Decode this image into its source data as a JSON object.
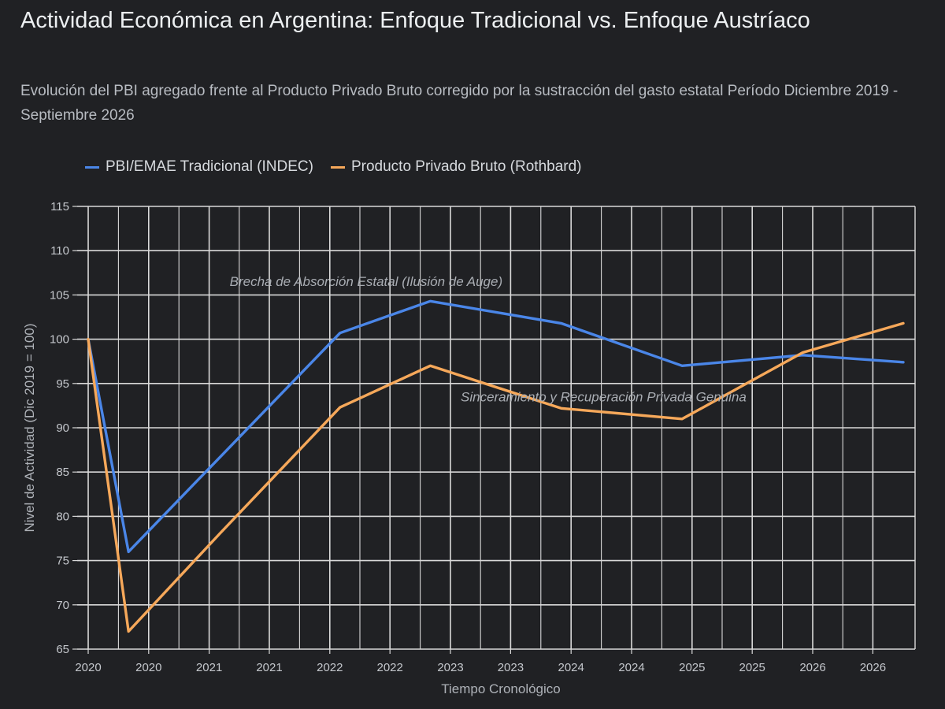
{
  "title": "Actividad Económica en Argentina: Enfoque Tradicional vs. Enfoque Austríaco",
  "subtitle": "Evolución del PBI agregado frente al Producto Privado Bruto corregido por la sustracción del gasto estatal Período Diciembre 2019 - Septiembre 2026",
  "colors": {
    "background": "#202124",
    "grid": "#d9d9d9",
    "series_traditional": "#4a86e8",
    "series_rothbard": "#f6a85a"
  },
  "chart_data": {
    "type": "line",
    "xlabel": "Tiempo Cronológico",
    "ylabel": "Nivel de Actividad (Dic 2019 = 100)",
    "ylim": [
      65,
      115
    ],
    "yticks": [
      65,
      70,
      75,
      80,
      85,
      90,
      95,
      100,
      105,
      110,
      115
    ],
    "xlim": [
      "2019-12-01",
      "2026-09-01"
    ],
    "xticks": [
      {
        "date": "2019-12-01",
        "label": "2020"
      },
      {
        "date": "2020-06-01",
        "label": "2020"
      },
      {
        "date": "2020-12-01",
        "label": "2021"
      },
      {
        "date": "2021-06-01",
        "label": "2021"
      },
      {
        "date": "2021-12-01",
        "label": "2022"
      },
      {
        "date": "2022-06-01",
        "label": "2022"
      },
      {
        "date": "2022-12-01",
        "label": "2023"
      },
      {
        "date": "2023-06-01",
        "label": "2023"
      },
      {
        "date": "2023-12-01",
        "label": "2024"
      },
      {
        "date": "2024-06-01",
        "label": "2024"
      },
      {
        "date": "2024-12-01",
        "label": "2025"
      },
      {
        "date": "2025-06-01",
        "label": "2025"
      },
      {
        "date": "2025-12-01",
        "label": "2026"
      },
      {
        "date": "2026-06-01",
        "label": "2026"
      }
    ],
    "grid": true,
    "legend_position": "top-left",
    "series": [
      {
        "name": "PBI/EMAE Tradicional (INDEC)",
        "color": "#4a86e8",
        "points": [
          {
            "x": "2019-12-01",
            "y": 100.0
          },
          {
            "x": "2020-04-01",
            "y": 76.0
          },
          {
            "x": "2022-01-01",
            "y": 100.7
          },
          {
            "x": "2022-10-01",
            "y": 104.3
          },
          {
            "x": "2023-11-01",
            "y": 101.8
          },
          {
            "x": "2024-11-01",
            "y": 97.0
          },
          {
            "x": "2025-11-01",
            "y": 98.2
          },
          {
            "x": "2026-09-01",
            "y": 97.4
          }
        ]
      },
      {
        "name": "Producto Privado Bruto (Rothbard)",
        "color": "#f6a85a",
        "points": [
          {
            "x": "2019-12-01",
            "y": 100.0
          },
          {
            "x": "2020-04-01",
            "y": 67.0
          },
          {
            "x": "2021-01-01",
            "y": 78.0
          },
          {
            "x": "2022-01-01",
            "y": 92.3
          },
          {
            "x": "2022-10-01",
            "y": 97.0
          },
          {
            "x": "2023-11-01",
            "y": 92.2
          },
          {
            "x": "2024-11-01",
            "y": 91.0
          },
          {
            "x": "2025-11-01",
            "y": 98.5
          },
          {
            "x": "2026-09-01",
            "y": 101.8
          }
        ]
      }
    ],
    "annotations": [
      {
        "text": "Brecha de Absorción Estatal (Ilusión de Auge)",
        "x": "2021-02-01",
        "y": 106.0,
        "anchor": "start"
      },
      {
        "text": "Sinceramiento y Recuperación Privada Genuina",
        "x": "2023-01-01",
        "y": 93.0,
        "anchor": "start"
      }
    ]
  }
}
